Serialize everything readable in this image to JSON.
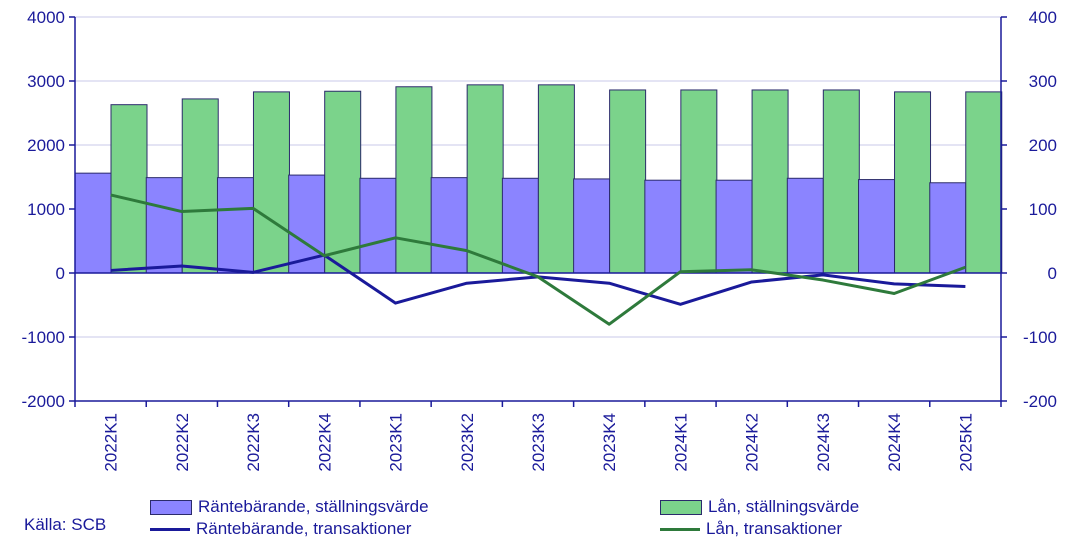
{
  "chart_data": {
    "type": "bar",
    "categories": [
      "2022K1",
      "2022K2",
      "2022K3",
      "2022K4",
      "2023K1",
      "2023K2",
      "2023K3",
      "2023K4",
      "2024K1",
      "2024K2",
      "2024K3",
      "2024K4",
      "2025K1"
    ],
    "left_axis": {
      "ylim": [
        -2000,
        4000
      ],
      "ticks": [
        4000,
        3000,
        2000,
        1000,
        0,
        -1000,
        -2000
      ]
    },
    "right_axis": {
      "ylim": [
        -200,
        400
      ],
      "ticks": [
        400,
        300,
        200,
        100,
        0,
        -100,
        -200
      ]
    },
    "grid": true,
    "series": [
      {
        "name": "Räntebärande, ställningsvärde",
        "type": "bar",
        "axis": "left",
        "color": "#8b84ff",
        "values": [
          1560,
          1490,
          1490,
          1530,
          1480,
          1490,
          1480,
          1470,
          1450,
          1450,
          1480,
          1460,
          1410
        ]
      },
      {
        "name": "Lån, ställningsvärde",
        "type": "bar",
        "axis": "left",
        "color": "#7bd38b",
        "values": [
          2630,
          2720,
          2830,
          2840,
          2910,
          2940,
          2940,
          2860,
          2860,
          2860,
          2860,
          2830,
          2830
        ]
      },
      {
        "name": "Räntebärande, transaktioner",
        "type": "line",
        "axis": "right",
        "color": "#1a1a9a",
        "values": [
          4,
          11,
          1,
          28,
          -47,
          -16,
          -6,
          -16,
          -49,
          -14,
          -3,
          -17,
          -21
        ]
      },
      {
        "name": "Lån, transaktioner",
        "type": "line",
        "axis": "right",
        "color": "#2e7a3b",
        "values": [
          122,
          96,
          101,
          27,
          55,
          35,
          -6,
          -80,
          2,
          5,
          -11,
          -32,
          9
        ]
      }
    ]
  },
  "legend": {
    "bar1": "Räntebärande, ställningsvärde",
    "bar2": "Lån, ställningsvärde",
    "line1": "Räntebärande, transaktioner",
    "line2": "Lån, transaktioner"
  },
  "source": "Källa: SCB",
  "colors": {
    "axis": "#1a1a9a",
    "grid": "#c9c9e8",
    "bar_border": "#2b2b6b"
  }
}
